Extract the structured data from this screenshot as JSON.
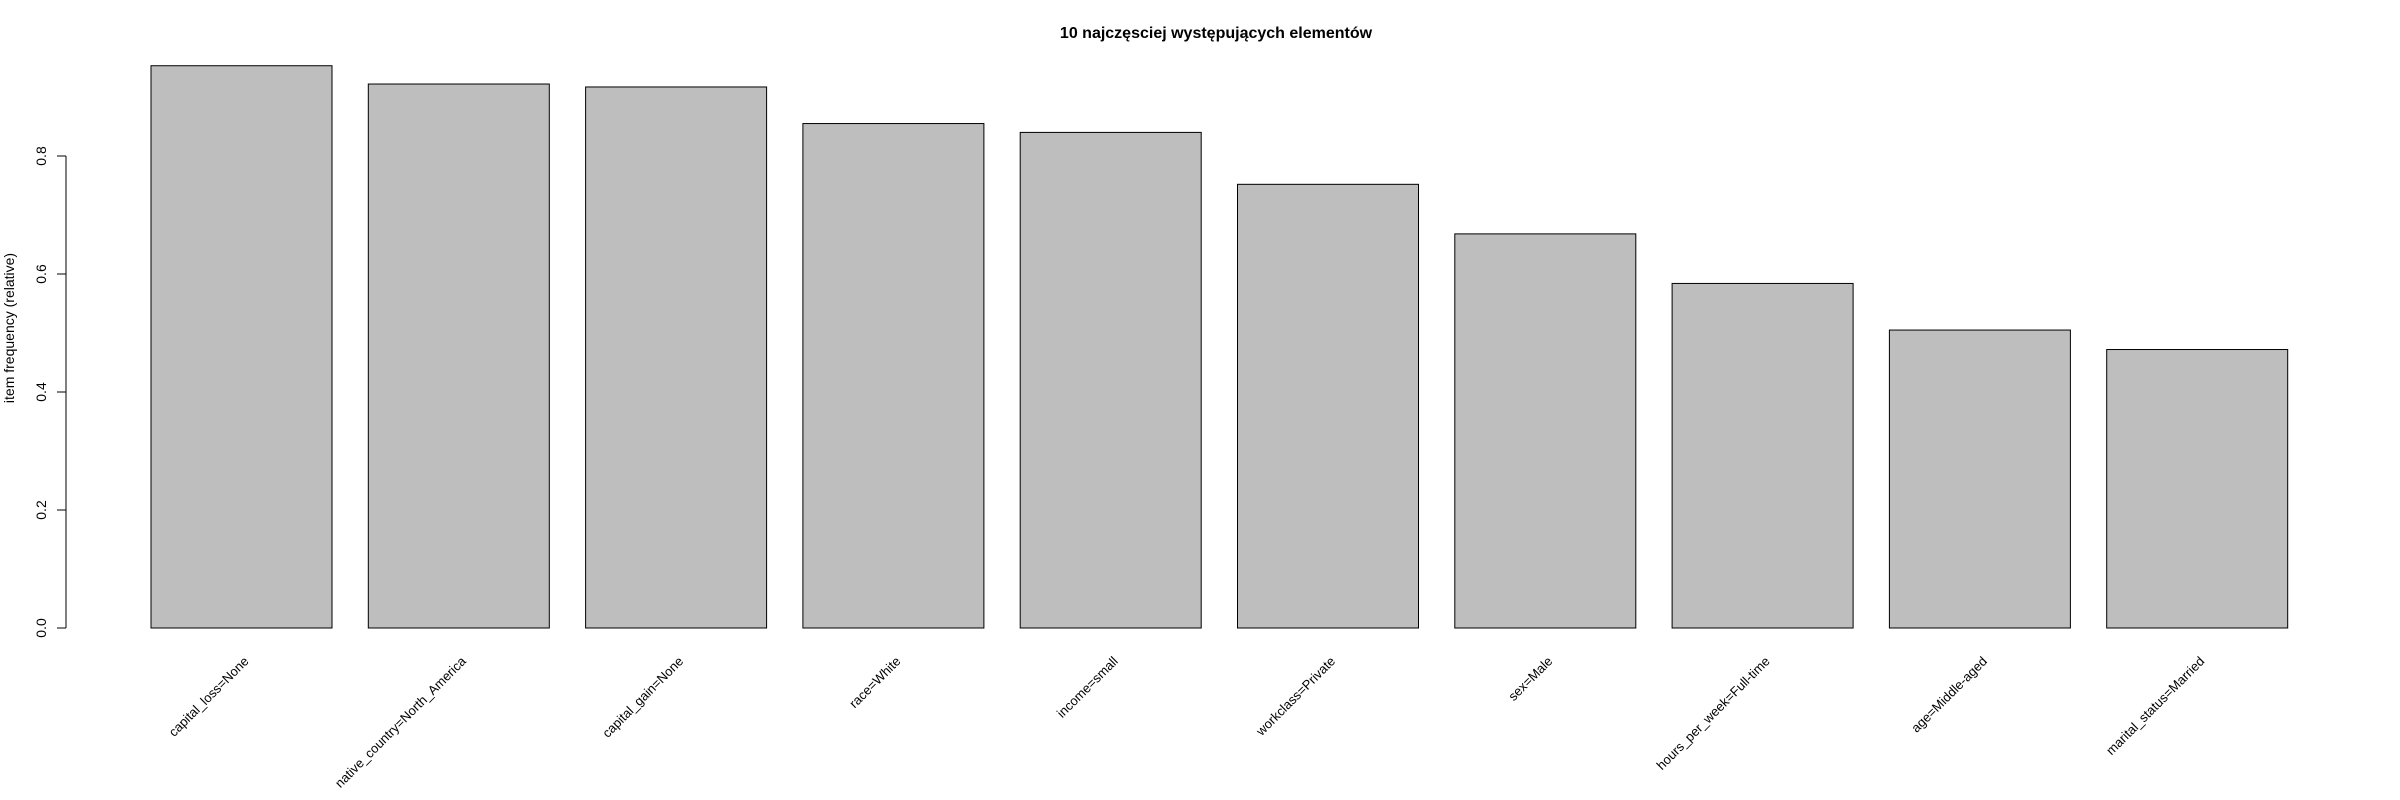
{
  "chart_data": {
    "type": "bar",
    "title": "10 najczęsciej występujących elementów",
    "xlabel": "",
    "ylabel": "item frequency (relative)",
    "categories": [
      "capital_loss=None",
      "native_country=North_America",
      "capital_gain=None",
      "race=White",
      "income=small",
      "workclass=Private",
      "sex=Male",
      "hours_per_week=Full-time",
      "age=Middle-aged",
      "marital_status=Married"
    ],
    "values": [
      0.953,
      0.922,
      0.917,
      0.855,
      0.84,
      0.752,
      0.668,
      0.584,
      0.505,
      0.472
    ],
    "ylim": [
      0,
      0.96
    ],
    "yticks": [
      "0.0",
      "0.2",
      "0.4",
      "0.6",
      "0.8"
    ],
    "bar_color": "#bebebe",
    "grid": false,
    "legend": false
  }
}
